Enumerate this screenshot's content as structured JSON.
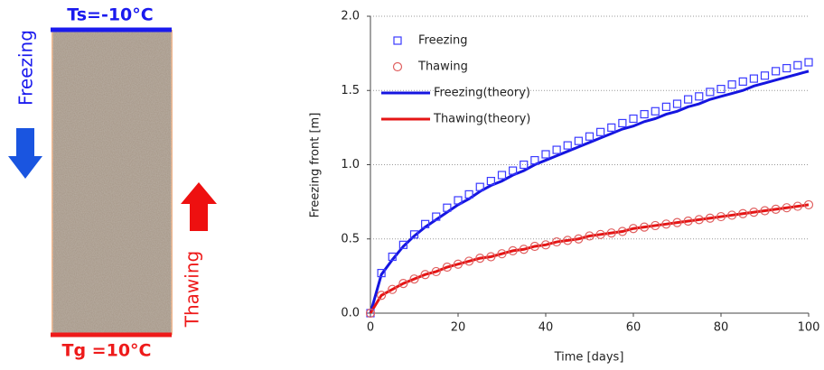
{
  "diagram": {
    "top_label": "Ts=-10°C",
    "bottom_label": "Tg =10°C",
    "left_label": "Freezing",
    "right_label": "Thawing"
  },
  "chart_data": {
    "type": "line",
    "x_label": "Time [days]",
    "y_label": "Freezing front [m]",
    "x": [
      0,
      2.5,
      5,
      7.5,
      10,
      12.5,
      15,
      17.5,
      20,
      22.5,
      25,
      27.5,
      30,
      32.5,
      35,
      37.5,
      40,
      42.5,
      45,
      47.5,
      50,
      52.5,
      55,
      57.5,
      60,
      62.5,
      65,
      67.5,
      70,
      72.5,
      75,
      77.5,
      80,
      82.5,
      85,
      87.5,
      90,
      92.5,
      95,
      97.5,
      100
    ],
    "series": [
      {
        "name": "Freezing",
        "color": "#3a3aff",
        "marker": "square",
        "line": false,
        "values": [
          0,
          0.27,
          0.38,
          0.46,
          0.53,
          0.6,
          0.65,
          0.71,
          0.76,
          0.8,
          0.85,
          0.89,
          0.93,
          0.96,
          1.0,
          1.03,
          1.07,
          1.1,
          1.13,
          1.16,
          1.19,
          1.22,
          1.25,
          1.28,
          1.31,
          1.34,
          1.36,
          1.39,
          1.41,
          1.44,
          1.46,
          1.49,
          1.51,
          1.54,
          1.56,
          1.58,
          1.6,
          1.63,
          1.65,
          1.67,
          1.69
        ]
      },
      {
        "name": "Thawing",
        "color": "#e06060",
        "marker": "circle",
        "line": false,
        "values": [
          0,
          0.12,
          0.16,
          0.2,
          0.23,
          0.26,
          0.28,
          0.31,
          0.33,
          0.35,
          0.37,
          0.38,
          0.4,
          0.42,
          0.43,
          0.45,
          0.46,
          0.48,
          0.49,
          0.5,
          0.52,
          0.53,
          0.54,
          0.55,
          0.57,
          0.58,
          0.59,
          0.6,
          0.61,
          0.62,
          0.63,
          0.64,
          0.65,
          0.66,
          0.67,
          0.68,
          0.69,
          0.7,
          0.71,
          0.72,
          0.73
        ]
      },
      {
        "name": "Freezing(theory)",
        "color": "#1515e0",
        "marker": null,
        "line": true,
        "values": [
          0,
          0.26,
          0.36,
          0.45,
          0.52,
          0.58,
          0.63,
          0.68,
          0.73,
          0.77,
          0.82,
          0.86,
          0.89,
          0.93,
          0.96,
          1.0,
          1.03,
          1.06,
          1.09,
          1.12,
          1.15,
          1.18,
          1.21,
          1.24,
          1.26,
          1.29,
          1.31,
          1.34,
          1.36,
          1.39,
          1.41,
          1.44,
          1.46,
          1.48,
          1.5,
          1.53,
          1.55,
          1.57,
          1.59,
          1.61,
          1.63
        ]
      },
      {
        "name": "Thawing(theory)",
        "color": "#e51515",
        "marker": null,
        "line": true,
        "values": [
          0,
          0.12,
          0.16,
          0.2,
          0.23,
          0.26,
          0.28,
          0.31,
          0.33,
          0.35,
          0.37,
          0.38,
          0.4,
          0.42,
          0.43,
          0.45,
          0.46,
          0.48,
          0.49,
          0.5,
          0.52,
          0.53,
          0.54,
          0.55,
          0.57,
          0.58,
          0.59,
          0.6,
          0.61,
          0.62,
          0.63,
          0.64,
          0.65,
          0.66,
          0.67,
          0.68,
          0.69,
          0.7,
          0.71,
          0.72,
          0.73
        ]
      }
    ],
    "xlim": [
      0,
      100
    ],
    "xticks": [
      0,
      20,
      40,
      60,
      80,
      100
    ],
    "ylim": [
      0,
      2
    ],
    "yticks": [
      {
        "value": 0,
        "label": "0.0"
      },
      {
        "value": 0.5,
        "label": "0.5"
      },
      {
        "value": 1,
        "label": "1.0"
      },
      {
        "value": 1.5,
        "label": "1.5"
      },
      {
        "value": 2,
        "label": "2.0"
      }
    ],
    "grid": true,
    "legend": "upper-left"
  }
}
